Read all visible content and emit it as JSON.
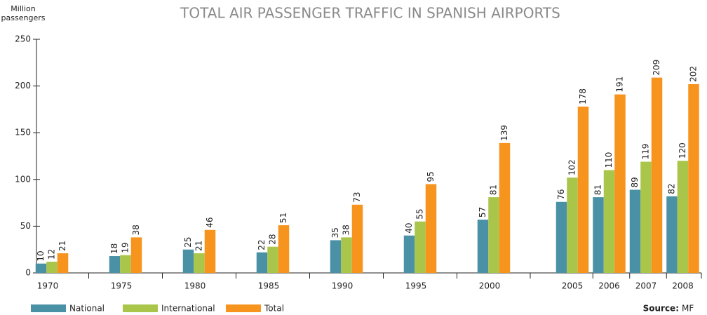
{
  "chart_data": {
    "type": "bar",
    "title": "TOTAL AIR PASSENGER TRAFFIC IN SPANISH AIRPORTS",
    "y_label": "Million passengers",
    "categories": [
      "1970",
      "1975",
      "1980",
      "1985",
      "1990",
      "1995",
      "2000",
      "2005",
      "2006",
      "2007",
      "2008"
    ],
    "series": [
      {
        "name": "National",
        "color": "#4b91a6",
        "values": [
          10,
          18,
          25,
          22,
          35,
          40,
          57,
          76,
          81,
          89,
          82
        ]
      },
      {
        "name": "International",
        "color": "#a9c64b",
        "values": [
          12,
          19,
          21,
          28,
          38,
          55,
          81,
          102,
          110,
          119,
          120
        ]
      },
      {
        "name": "Total",
        "color": "#f7941e",
        "values": [
          21,
          38,
          46,
          51,
          73,
          95,
          139,
          178,
          191,
          209,
          202
        ]
      }
    ],
    "ylim": [
      0,
      250
    ],
    "yticks": [
      0,
      50,
      100,
      150,
      200,
      250
    ],
    "source_label": "Source:",
    "source": "MF"
  }
}
